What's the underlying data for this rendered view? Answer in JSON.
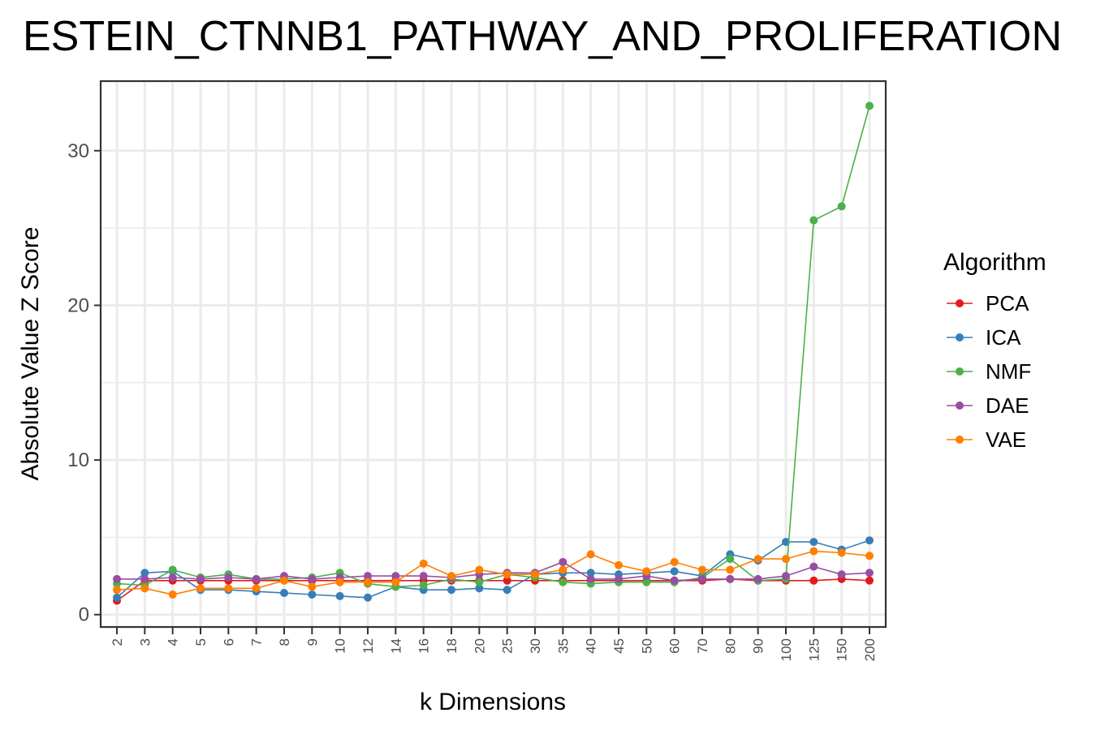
{
  "chart_data": {
    "type": "line",
    "title": "ESTEIN_CTNNB1_PATHWAY_AND_PROLIFERATION",
    "xlabel": "k Dimensions",
    "ylabel": "Absolute Value Z Score",
    "categories": [
      "2",
      "3",
      "4",
      "5",
      "6",
      "7",
      "8",
      "9",
      "10",
      "12",
      "14",
      "16",
      "18",
      "20",
      "25",
      "30",
      "35",
      "40",
      "45",
      "50",
      "60",
      "70",
      "80",
      "90",
      "100",
      "125",
      "150",
      "200"
    ],
    "yticks": [
      0,
      10,
      20,
      30
    ],
    "ylim": [
      -0.8,
      34.5
    ],
    "grid": true,
    "legend": {
      "title": "Algorithm",
      "position": "right"
    },
    "series": [
      {
        "name": "PCA",
        "color": "#e41a1c",
        "values": [
          0.9,
          2.2,
          2.2,
          2.2,
          2.2,
          2.2,
          2.2,
          2.2,
          2.2,
          2.2,
          2.2,
          2.2,
          2.2,
          2.2,
          2.2,
          2.2,
          2.2,
          2.2,
          2.2,
          2.2,
          2.2,
          2.2,
          2.3,
          2.2,
          2.2,
          2.2,
          2.3,
          2.2
        ]
      },
      {
        "name": "ICA",
        "color": "#377eb8",
        "values": [
          1.1,
          2.7,
          2.8,
          1.6,
          1.6,
          1.5,
          1.4,
          1.3,
          1.2,
          1.1,
          1.8,
          1.6,
          1.6,
          1.7,
          1.6,
          2.6,
          2.7,
          2.7,
          2.6,
          2.7,
          2.8,
          2.5,
          3.9,
          3.5,
          4.7,
          4.7,
          4.2,
          4.8
        ]
      },
      {
        "name": "NMF",
        "color": "#4daf4a",
        "values": [
          2.0,
          1.9,
          2.9,
          2.4,
          2.6,
          2.3,
          2.3,
          2.4,
          2.7,
          2.0,
          1.8,
          1.9,
          2.3,
          2.1,
          2.6,
          2.4,
          2.1,
          2.0,
          2.1,
          2.1,
          2.1,
          2.4,
          3.6,
          2.2,
          2.3,
          25.5,
          26.4,
          32.9
        ]
      },
      {
        "name": "DAE",
        "color": "#984ea3",
        "values": [
          2.3,
          2.3,
          2.4,
          2.3,
          2.4,
          2.3,
          2.5,
          2.3,
          2.4,
          2.5,
          2.5,
          2.5,
          2.4,
          2.6,
          2.7,
          2.7,
          3.4,
          2.3,
          2.3,
          2.5,
          2.2,
          2.3,
          2.3,
          2.3,
          2.5,
          3.1,
          2.6,
          2.7
        ]
      },
      {
        "name": "VAE",
        "color": "#ff7f00",
        "values": [
          1.6,
          1.7,
          1.3,
          1.7,
          1.7,
          1.7,
          2.2,
          1.8,
          2.1,
          2.1,
          2.1,
          3.3,
          2.5,
          2.9,
          2.6,
          2.6,
          2.9,
          3.9,
          3.2,
          2.8,
          3.4,
          2.9,
          2.9,
          3.6,
          3.6,
          4.1,
          4.0,
          3.8
        ]
      }
    ]
  }
}
